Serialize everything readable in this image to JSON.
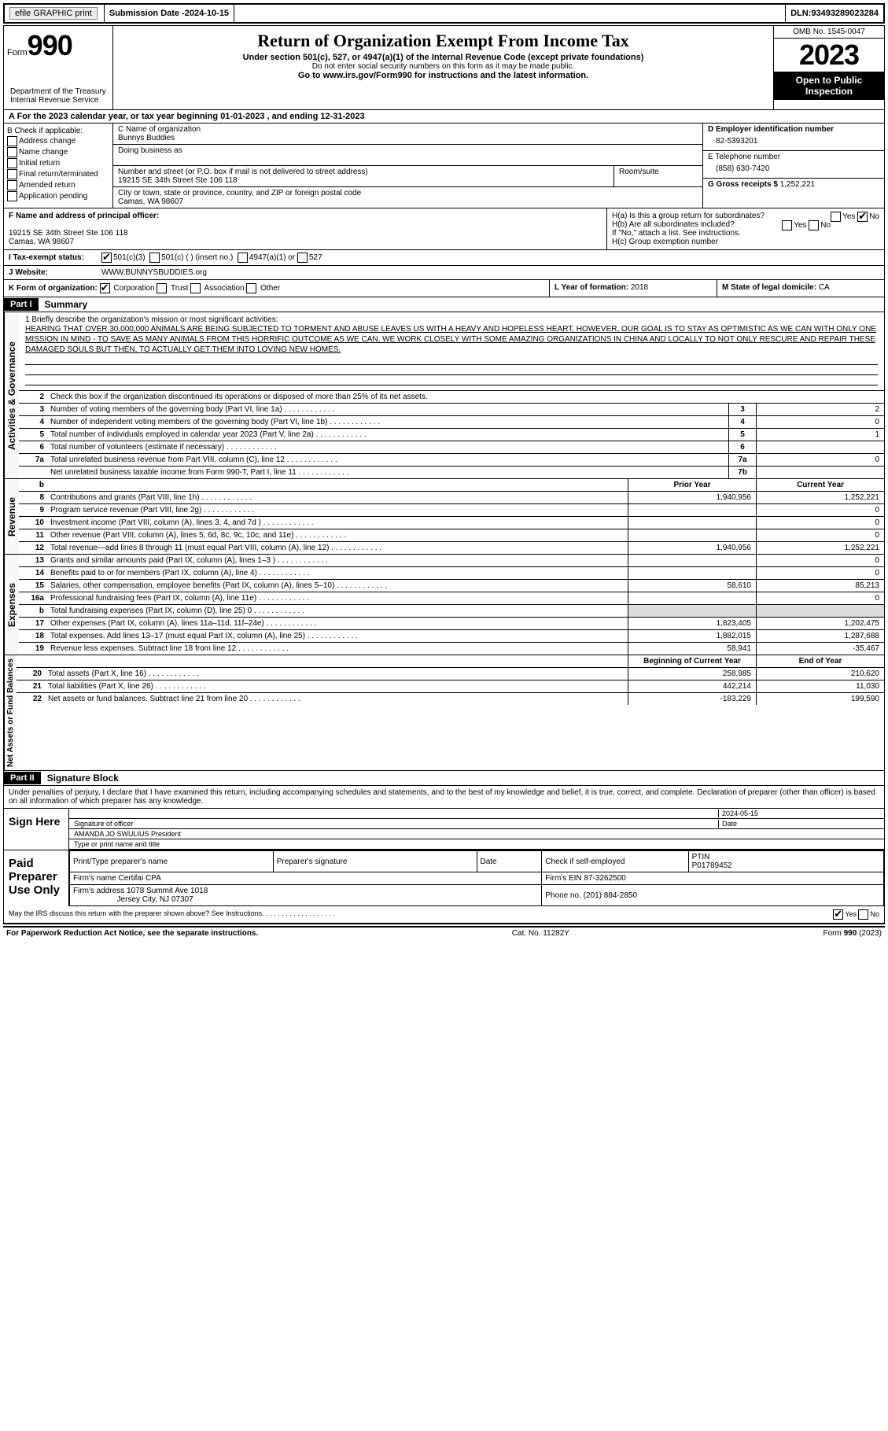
{
  "topbar": {
    "efile": "efile GRAPHIC print",
    "submission_label": "Submission Date - ",
    "submission_date": "2024-10-15",
    "dln_label": "DLN: ",
    "dln": "93493289023284"
  },
  "header": {
    "form_word": "Form",
    "form_num": "990",
    "dept": "Department of the Treasury\nInternal Revenue Service",
    "title": "Return of Organization Exempt From Income Tax",
    "subtitle": "Under section 501(c), 527, or 4947(a)(1) of the Internal Revenue Code (except private foundations)",
    "ssn_note": "Do not enter social security numbers on this form as it may be made public.",
    "goto": "Go to www.irs.gov/Form990 for instructions and the latest information.",
    "omb": "OMB No. 1545-0047",
    "year": "2023",
    "inspection": "Open to Public Inspection"
  },
  "section_a": "A  For the 2023 calendar year, or tax year beginning 01-01-2023   , and ending 12-31-2023",
  "col_b": {
    "label": "B Check if applicable:",
    "opts": [
      "Address change",
      "Name change",
      "Initial return",
      "Final return/terminated",
      "Amended return",
      "Application pending"
    ]
  },
  "col_c": {
    "name_lbl": "C Name of organization",
    "name": "Bunnys Buddies",
    "dba_lbl": "Doing business as",
    "street_lbl": "Number and street (or P.O. box if mail is not delivered to street address)",
    "room_lbl": "Room/suite",
    "street": "19215 SE 34th Street Ste 106 118",
    "city_lbl": "City or town, state or province, country, and ZIP or foreign postal code",
    "city": "Camas, WA  98607"
  },
  "col_d": {
    "ein_lbl": "D Employer identification number",
    "ein": "82-5393201",
    "phone_lbl": "E Telephone number",
    "phone": "(858) 630-7420",
    "gross_lbl": "G Gross receipts $ ",
    "gross": "1,252,221"
  },
  "row_f": {
    "lbl": "F  Name and address of principal officer:",
    "addr1": "19215 SE 34th Street Ste 106 118",
    "addr2": "Camas, WA  98607"
  },
  "row_h": {
    "ha": "H(a)  Is this a group return for subordinates?",
    "hb": "H(b)  Are all subordinates included?",
    "hb_note": "If \"No,\" attach a list. See instructions.",
    "hc": "H(c)  Group exemption number "
  },
  "row_i": {
    "lbl": "I    Tax-exempt status:",
    "o1": "501(c)(3)",
    "o2": "501(c) (  ) (insert no.)",
    "o3": "4947(a)(1) or",
    "o4": "527"
  },
  "row_j": {
    "lbl": "J   Website: ",
    "val": "WWW.BUNNYSBUDDIES.org"
  },
  "row_k": {
    "lbl": "K Form of organization:",
    "o1": "Corporation",
    "o2": "Trust",
    "o3": "Association",
    "o4": "Other"
  },
  "row_l": {
    "lbl": "L Year of formation: ",
    "val": "2018"
  },
  "row_m": {
    "lbl": "M State of legal domicile: ",
    "val": "CA"
  },
  "part1": {
    "hdr": "Part I",
    "title": "Summary"
  },
  "mission": {
    "lbl": "1   Briefly describe the organization's mission or most significant activities:",
    "text": "HEARING THAT OVER 30,000,000 ANIMALS ARE BEING SUBJECTED TO TORMENT AND ABUSE LEAVES US WITH A HEAVY AND HOPELESS HEART, HOWEVER, OUR GOAL IS TO STAY AS OPTIMISTIC AS WE CAN WITH ONLY ONE MISSION IN MIND - TO SAVE AS MANY ANIMALS FROM THIS HORRIFIC OUTCOME AS WE CAN. WE WORK CLOSELY WITH SOME AMAZING ORGANIZATIONS IN CHINA AND LOCALLY TO NOT ONLY RESCURE AND REPAIR THESE DAMAGED SOULS BUT THEN, TO ACTUALLY GET THEM INTO LOVING NEW HOMES."
  },
  "gov_lines": {
    "l2": "Check this box       if the organization discontinued its operations or disposed of more than 25% of its net assets.",
    "l3": {
      "d": "Number of voting members of the governing body (Part VI, line 1a)",
      "b": "3",
      "v": "2"
    },
    "l4": {
      "d": "Number of independent voting members of the governing body (Part VI, line 1b)",
      "b": "4",
      "v": "0"
    },
    "l5": {
      "d": "Total number of individuals employed in calendar year 2023 (Part V, line 2a)",
      "b": "5",
      "v": "1"
    },
    "l6": {
      "d": "Total number of volunteers (estimate if necessary)",
      "b": "6",
      "v": ""
    },
    "l7a": {
      "d": "Total unrelated business revenue from Part VIII, column (C), line 12",
      "b": "7a",
      "v": "0"
    },
    "l7b": {
      "d": "Net unrelated business taxable income from Form 990-T, Part I, line 11",
      "b": "7b",
      "v": ""
    }
  },
  "cols": {
    "prior": "Prior Year",
    "current": "Current Year",
    "begin": "Beginning of Current Year",
    "end": "End of Year"
  },
  "revenue": [
    {
      "n": "8",
      "d": "Contributions and grants (Part VIII, line 1h)",
      "p": "1,940,956",
      "c": "1,252,221"
    },
    {
      "n": "9",
      "d": "Program service revenue (Part VIII, line 2g)",
      "p": "",
      "c": "0"
    },
    {
      "n": "10",
      "d": "Investment income (Part VIII, column (A), lines 3, 4, and 7d )",
      "p": "",
      "c": "0"
    },
    {
      "n": "11",
      "d": "Other revenue (Part VIII, column (A), lines 5, 6d, 8c, 9c, 10c, and 11e)",
      "p": "",
      "c": "0"
    },
    {
      "n": "12",
      "d": "Total revenue—add lines 8 through 11 (must equal Part VIII, column (A), line 12)",
      "p": "1,940,956",
      "c": "1,252,221"
    }
  ],
  "expenses": [
    {
      "n": "13",
      "d": "Grants and similar amounts paid (Part IX, column (A), lines 1–3 )",
      "p": "",
      "c": "0"
    },
    {
      "n": "14",
      "d": "Benefits paid to or for members (Part IX, column (A), line 4)",
      "p": "",
      "c": "0"
    },
    {
      "n": "15",
      "d": "Salaries, other compensation, employee benefits (Part IX, column (A), lines 5–10)",
      "p": "58,610",
      "c": "85,213"
    },
    {
      "n": "16a",
      "d": "Professional fundraising fees (Part IX, column (A), line 11e)",
      "p": "",
      "c": "0"
    },
    {
      "n": "b",
      "d": "Total fundraising expenses (Part IX, column (D), line 25) 0",
      "p": "shaded",
      "c": "shaded"
    },
    {
      "n": "17",
      "d": "Other expenses (Part IX, column (A), lines 11a–11d, 11f–24e)",
      "p": "1,823,405",
      "c": "1,202,475"
    },
    {
      "n": "18",
      "d": "Total expenses. Add lines 13–17 (must equal Part IX, column (A), line 25)",
      "p": "1,882,015",
      "c": "1,287,688"
    },
    {
      "n": "19",
      "d": "Revenue less expenses. Subtract line 18 from line 12",
      "p": "58,941",
      "c": "-35,467"
    }
  ],
  "netassets": [
    {
      "n": "20",
      "d": "Total assets (Part X, line 16)",
      "p": "258,985",
      "c": "210,620"
    },
    {
      "n": "21",
      "d": "Total liabilities (Part X, line 26)",
      "p": "442,214",
      "c": "11,030"
    },
    {
      "n": "22",
      "d": "Net assets or fund balances. Subtract line 21 from line 20",
      "p": "-183,229",
      "c": "199,590"
    }
  ],
  "vlabels": {
    "gov": "Activities & Governance",
    "rev": "Revenue",
    "exp": "Expenses",
    "net": "Net Assets or Fund Balances"
  },
  "part2": {
    "hdr": "Part II",
    "title": "Signature Block"
  },
  "declare": "Under penalties of perjury, I declare that I have examined this return, including accompanying schedules and statements, and to the best of my knowledge and belief, it is true, correct, and complete. Declaration of preparer (other than officer) is based on all information of which preparer has any knowledge.",
  "sign": {
    "here": "Sign Here",
    "date": "2024-05-15",
    "sig_lbl": "Signature of officer",
    "date_lbl": "Date",
    "name": "AMANDA JO SWULIUS  President",
    "name_lbl": "Type or print name and title"
  },
  "prep": {
    "here": "Paid Preparer Use Only",
    "h1": "Print/Type preparer's name",
    "h2": "Preparer's signature",
    "h3": "Date",
    "check_lbl": "Check        if self-employed",
    "ptin_lbl": "PTIN",
    "ptin": "P01789452",
    "firm_lbl": "Firm's name   ",
    "firm": "Certifai CPA",
    "ein_lbl": "Firm's EIN  ",
    "ein": "87-3262500",
    "addr_lbl": "Firm's address ",
    "addr1": "1078 Summit Ave 1018",
    "addr2": "Jersey City, NJ  07307",
    "phone_lbl": "Phone no. ",
    "phone": "(201) 884-2850"
  },
  "discuss": "May the IRS discuss this return with the preparer shown above? See Instructions.  .   .   .   .   .   .   .   .   .   .   .   .   .   .   .   .   .   .",
  "footer": {
    "left": "For Paperwork Reduction Act Notice, see the separate instructions.",
    "mid": "Cat. No. 11282Y",
    "right": "Form 990 (2023)"
  },
  "yn": {
    "yes": "Yes",
    "no": "No"
  }
}
